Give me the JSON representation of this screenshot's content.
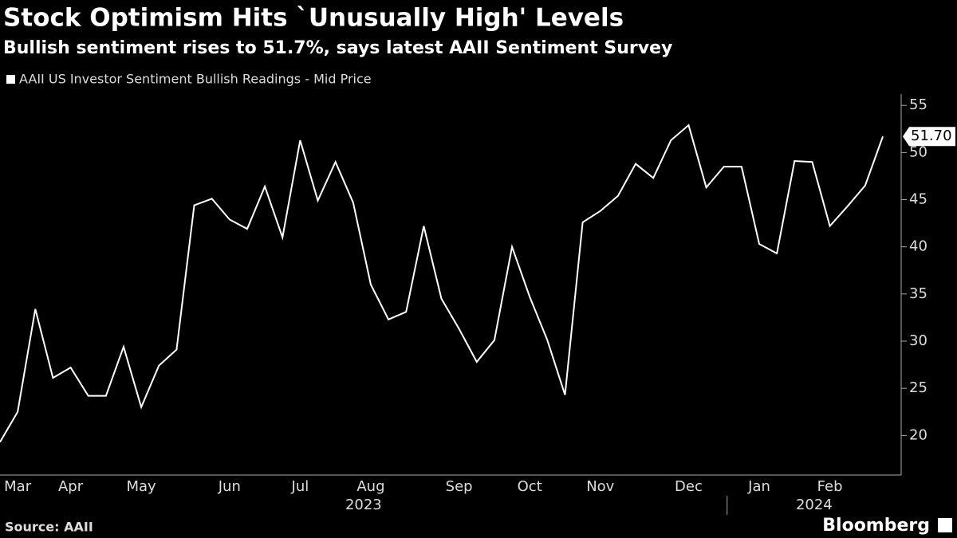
{
  "chart_data": {
    "type": "line",
    "title": "Stock Optimism Hits `Unusually High' Levels",
    "subtitle": "Bullish sentiment rises to 51.7%, says latest AAII Sentiment Survey",
    "source": "Source: AAII",
    "brand": "Bloomberg",
    "years": [
      "2023",
      "2024"
    ],
    "categories": [
      null,
      "Mar",
      null,
      null,
      "Apr",
      null,
      null,
      null,
      "May",
      null,
      null,
      null,
      null,
      "Jun",
      null,
      null,
      null,
      "Jul",
      null,
      null,
      null,
      "Aug",
      null,
      null,
      null,
      null,
      "Sep",
      null,
      null,
      null,
      "Oct",
      null,
      null,
      null,
      "Nov",
      null,
      null,
      null,
      null,
      "Dec",
      null,
      null,
      null,
      "Jan",
      null,
      null,
      null,
      "Feb",
      null,
      null,
      null
    ],
    "series": [
      {
        "name": "AAII US Investor Sentiment Bullish Readings - Mid Price",
        "color": "#ffffff",
        "values": [
          19.3,
          22.5,
          33.4,
          26.1,
          27.2,
          24.2,
          24.2,
          29.4,
          23.0,
          27.4,
          29.1,
          44.4,
          45.1,
          42.9,
          41.9,
          46.4,
          41.0,
          51.3,
          44.9,
          49.0,
          44.7,
          36.0,
          32.3,
          33.1,
          42.2,
          34.5,
          31.3,
          27.8,
          30.1,
          40.0,
          34.7,
          30.1,
          24.3,
          42.6,
          43.8,
          45.4,
          48.8,
          47.3,
          51.3,
          52.9,
          46.3,
          48.5,
          48.5,
          40.3,
          39.3,
          49.1,
          49.0,
          42.2,
          44.3,
          46.5,
          51.7
        ],
        "last_value_label": "51.70"
      }
    ],
    "ylim": [
      15.8,
      56.2
    ],
    "yticks": [
      20,
      25,
      30,
      35,
      40,
      45,
      50,
      55
    ],
    "grid": false
  }
}
